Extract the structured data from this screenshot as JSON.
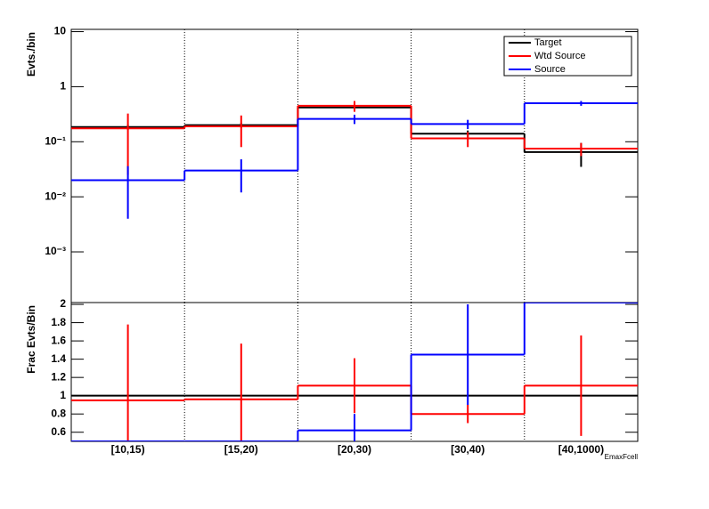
{
  "chart_data": [
    {
      "type": "step",
      "ylabel": "Evts./bin",
      "log": true,
      "xgrid": true,
      "ylim": [
        0.00012,
        11
      ],
      "yticks": [
        10,
        1,
        {
          "value": 0.1,
          "label": "10⁻¹"
        },
        {
          "value": 0.01,
          "label": "10⁻²"
        },
        {
          "value": 0.001,
          "label": "10⁻³"
        }
      ],
      "legend": "top-right",
      "series": [
        {
          "name": "Target",
          "color": "#000000",
          "values": [
            0.185,
            0.2,
            0.42,
            0.14,
            0.065
          ],
          "errors": [
            0.02,
            0.02,
            0.04,
            0.02,
            0.03
          ]
        },
        {
          "name": "Wtd Source",
          "color": "#ff0000",
          "values": [
            0.175,
            0.19,
            0.45,
            0.115,
            0.075
          ],
          "errors": [
            0.15,
            0.11,
            0.1,
            0.035,
            0.02
          ]
        },
        {
          "name": "Source",
          "color": "#0000ff",
          "values": [
            0.02,
            0.03,
            0.26,
            0.21,
            0.5
          ],
          "errors": [
            0.016,
            0.018,
            0.05,
            0.04,
            0.05
          ]
        }
      ]
    },
    {
      "type": "step",
      "ylabel": "Frac Evts/Bin",
      "xlabel": "EmaxFcell",
      "xgrid": true,
      "categories": [
        "[10,15)",
        "[15,20)",
        "[20,30)",
        "[30,40)",
        "[40,1000)"
      ],
      "ylim": [
        0.5,
        2.02
      ],
      "yticks": [
        2,
        1.8,
        1.6,
        1.4,
        1.2,
        1,
        0.8,
        0.6
      ],
      "series": [
        {
          "color": "#000000",
          "values": [
            1,
            1,
            1,
            1,
            1
          ]
        },
        {
          "color": "#ff0000",
          "values": [
            0.95,
            0.96,
            1.11,
            0.8,
            1.11
          ],
          "errors": [
            0.83,
            0.61,
            0.3,
            0.1,
            0.55
          ]
        },
        {
          "color": "#0000ff",
          "values": [
            0.5,
            0.5,
            0.62,
            1.45,
            2.02
          ],
          "errors": [
            0,
            0,
            0.18,
            0.55,
            0
          ]
        }
      ]
    }
  ]
}
